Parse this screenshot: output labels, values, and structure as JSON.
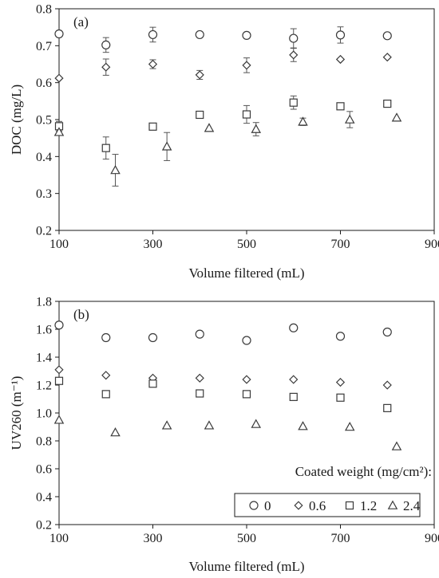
{
  "legend": {
    "title": "Coated weight (mg/cm²):",
    "entries": [
      "0",
      "0.6",
      "1.2",
      "2.4"
    ]
  },
  "chart_data": [
    {
      "type": "scatter",
      "panel_label": "(a)",
      "xlabel": "Volume filtered (mL)",
      "ylabel": "DOC (mg/L)",
      "xlim": [
        100,
        900
      ],
      "ylim": [
        0.2,
        0.8
      ],
      "xticks": [
        100,
        300,
        500,
        700,
        900
      ],
      "yticks": [
        0.2,
        0.3,
        0.4,
        0.5,
        0.6,
        0.7,
        0.8
      ],
      "ytick_labels": [
        "0.2",
        "0.3",
        "0.4",
        "0.5",
        "0.6",
        "0.7",
        "0.8"
      ],
      "grid": false,
      "series": [
        {
          "name": "0",
          "marker": "circle",
          "x": [
            100,
            200,
            300,
            400,
            500,
            600,
            700,
            800
          ],
          "y": [
            0.732,
            0.702,
            0.73,
            0.73,
            0.728,
            0.72,
            0.729,
            0.727
          ],
          "err": [
            0.0,
            0.02,
            0.02,
            0.005,
            0.0,
            0.026,
            0.022,
            0.0
          ]
        },
        {
          "name": "0.6",
          "marker": "diamond",
          "x": [
            100,
            200,
            300,
            400,
            500,
            600,
            700,
            800
          ],
          "y": [
            0.612,
            0.642,
            0.65,
            0.621,
            0.647,
            0.675,
            0.663,
            0.669
          ],
          "err": [
            0.0,
            0.022,
            0.012,
            0.012,
            0.02,
            0.018,
            0.0,
            0.0
          ]
        },
        {
          "name": "1.2",
          "marker": "square",
          "x": [
            100,
            200,
            300,
            400,
            500,
            600,
            700,
            800
          ],
          "y": [
            0.482,
            0.423,
            0.481,
            0.513,
            0.514,
            0.546,
            0.536,
            0.543
          ],
          "err": [
            0.013,
            0.03,
            0.0,
            0.0,
            0.024,
            0.018,
            0.0,
            0.0
          ]
        },
        {
          "name": "2.4",
          "marker": "triangle",
          "x": [
            100,
            220,
            330,
            420,
            520,
            620,
            720,
            820
          ],
          "y": [
            0.466,
            0.363,
            0.427,
            0.477,
            0.474,
            0.494,
            0.5,
            0.505
          ],
          "err": [
            0.0,
            0.043,
            0.038,
            0.0,
            0.018,
            0.01,
            0.022,
            0.0
          ]
        }
      ]
    },
    {
      "type": "scatter",
      "panel_label": "(b)",
      "xlabel": "Volume filtered (mL)",
      "ylabel": "UV260 (m⁻¹)",
      "xlim": [
        100,
        900
      ],
      "ylim": [
        0.2,
        1.8
      ],
      "xticks": [
        100,
        300,
        500,
        700,
        900
      ],
      "yticks": [
        0.2,
        0.4,
        0.6,
        0.8,
        1.0,
        1.2,
        1.4,
        1.6,
        1.8
      ],
      "ytick_labels": [
        "0.2",
        "0.4",
        "0.6",
        "0.8",
        "1.0",
        "1.2",
        "1.4",
        "1.6",
        "1.8"
      ],
      "grid": false,
      "legend_position": "bottom-right",
      "series": [
        {
          "name": "0",
          "marker": "circle",
          "x": [
            100,
            200,
            300,
            400,
            500,
            600,
            700,
            800
          ],
          "y": [
            1.63,
            1.54,
            1.54,
            1.565,
            1.52,
            1.61,
            1.55,
            1.58
          ]
        },
        {
          "name": "0.6",
          "marker": "diamond",
          "x": [
            100,
            200,
            300,
            400,
            500,
            600,
            700,
            800
          ],
          "y": [
            1.31,
            1.27,
            1.25,
            1.25,
            1.24,
            1.24,
            1.22,
            1.2
          ]
        },
        {
          "name": "1.2",
          "marker": "square",
          "x": [
            100,
            200,
            300,
            400,
            500,
            600,
            700,
            800
          ],
          "y": [
            1.23,
            1.135,
            1.21,
            1.14,
            1.135,
            1.115,
            1.11,
            1.035
          ]
        },
        {
          "name": "2.4",
          "marker": "triangle",
          "x": [
            100,
            220,
            330,
            420,
            520,
            620,
            720,
            820
          ],
          "y": [
            0.95,
            0.86,
            0.91,
            0.91,
            0.92,
            0.905,
            0.9,
            0.76
          ]
        }
      ]
    }
  ]
}
